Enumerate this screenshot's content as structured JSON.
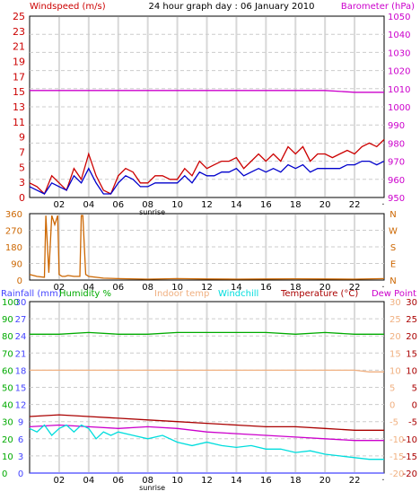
{
  "colors": {
    "wind": "#cc0000",
    "windavg": "#0000cc",
    "baro": "#cc00cc",
    "winddir": "#cc6600",
    "rain": "#4444ff",
    "humidity": "#00aa00",
    "indoor": "#f0b080",
    "windchill": "#00dddd",
    "temp": "#aa0000",
    "dew": "#cc00cc",
    "grid": "#dddddd",
    "frame": "#000000"
  },
  "header": {
    "title": "24 hour graph day : 06 January 2010",
    "left_label": "Windspeed (m/s)",
    "right_label": "Barometer (hPa)"
  },
  "legend2": {
    "rain": "Rainfall (mm)",
    "humidity": "Humidity %",
    "indoor": "Indoor temp",
    "windchill": "Windchill",
    "temp": "Temperature (°C)",
    "dew": "Dew Point"
  },
  "sunrise_label": "sunrise",
  "x_ticks": [
    "02",
    "04",
    "06",
    "08",
    "10",
    "12",
    "14",
    "16",
    "18",
    "20",
    "22"
  ],
  "chart_data": [
    {
      "type": "line",
      "name": "wind-baro",
      "xlim": [
        0,
        24
      ],
      "ylim": [
        0,
        25
      ],
      "y2lim": [
        950,
        1050
      ],
      "left_ticks": [
        "25",
        "23",
        "21",
        "19",
        "17",
        "15",
        "13",
        "11",
        "9",
        "7",
        "5",
        "3",
        "0"
      ],
      "right_ticks": [
        "1050",
        "1040",
        "1030",
        "1020",
        "1010",
        "1000",
        "990",
        "980",
        "970",
        "960",
        "950"
      ],
      "series": [
        {
          "key": "baro",
          "axis": "y2",
          "x": [
            0,
            2,
            4,
            6,
            8,
            10,
            12,
            14,
            16,
            18,
            20,
            22,
            24
          ],
          "y": [
            1009,
            1009,
            1009,
            1009,
            1009,
            1009,
            1009,
            1009,
            1009,
            1009,
            1009,
            1008,
            1008
          ]
        },
        {
          "key": "wind",
          "axis": "y",
          "x": [
            0,
            0.5,
            1,
            1.5,
            2,
            2.5,
            3,
            3.5,
            4,
            4.5,
            5,
            5.5,
            6,
            6.5,
            7,
            7.5,
            8,
            8.5,
            9,
            9.5,
            10,
            10.5,
            11,
            11.5,
            12,
            12.5,
            13,
            13.5,
            14,
            14.5,
            15,
            15.5,
            16,
            16.5,
            17,
            17.5,
            18,
            18.5,
            19,
            19.5,
            20,
            20.5,
            21,
            21.5,
            22,
            22.5,
            23,
            23.5,
            24
          ],
          "y": [
            2,
            1.5,
            0.5,
            3,
            2,
            1,
            4,
            2.5,
            6,
            3,
            1,
            0.5,
            3,
            4,
            3.5,
            2,
            2,
            3,
            3,
            2.5,
            2.5,
            4,
            3,
            5,
            4,
            4.5,
            5,
            5,
            5.5,
            4,
            5,
            6,
            5,
            6,
            5,
            7,
            6,
            7,
            5,
            6,
            6,
            5.5,
            6,
            6.5,
            6,
            7,
            7.5,
            7,
            8
          ]
        },
        {
          "key": "windavg",
          "axis": "y",
          "x": [
            0,
            0.5,
            1,
            1.5,
            2,
            2.5,
            3,
            3.5,
            4,
            4.5,
            5,
            5.5,
            6,
            6.5,
            7,
            7.5,
            8,
            8.5,
            9,
            9.5,
            10,
            10.5,
            11,
            11.5,
            12,
            12.5,
            13,
            13.5,
            14,
            14.5,
            15,
            15.5,
            16,
            16.5,
            17,
            17.5,
            18,
            18.5,
            19,
            19.5,
            20,
            20.5,
            21,
            21.5,
            22,
            22.5,
            23,
            23.5,
            24
          ],
          "y": [
            1.5,
            1,
            0.5,
            2,
            1.5,
            1,
            3,
            2,
            4,
            2,
            0.5,
            0.5,
            2,
            3,
            2.5,
            1.5,
            1.5,
            2,
            2,
            2,
            2,
            3,
            2,
            3.5,
            3,
            3,
            3.5,
            3.5,
            4,
            3,
            3.5,
            4,
            3.5,
            4,
            3.5,
            4.5,
            4,
            4.5,
            3.5,
            4,
            4,
            4,
            4,
            4.5,
            4.5,
            5,
            5,
            4.5,
            5
          ]
        }
      ]
    },
    {
      "type": "line",
      "name": "wind-direction",
      "xlim": [
        0,
        24
      ],
      "ylim": [
        0,
        360
      ],
      "left_ticks": [
        "360",
        "270",
        "180",
        "90",
        "0"
      ],
      "right_ticks": [
        "N",
        "W",
        "S",
        "E",
        "N"
      ],
      "series": [
        {
          "key": "winddir",
          "axis": "y",
          "x": [
            0,
            0.5,
            1,
            1.1,
            1.3,
            1.5,
            1.7,
            1.9,
            2,
            2.2,
            2.4,
            2.6,
            3,
            3.4,
            3.5,
            3.6,
            3.8,
            4,
            4.5,
            5,
            6,
            8,
            10,
            12,
            14,
            16,
            18,
            20,
            22,
            24
          ],
          "y": [
            30,
            20,
            15,
            350,
            40,
            350,
            300,
            350,
            30,
            20,
            20,
            25,
            20,
            20,
            350,
            350,
            30,
            20,
            15,
            10,
            8,
            5,
            8,
            6,
            5,
            6,
            7,
            6,
            5,
            8
          ]
        }
      ]
    },
    {
      "type": "line",
      "name": "temperature-humidity",
      "xlim": [
        0,
        24
      ],
      "ylim": [
        -20,
        30
      ],
      "y_left_ticks": [
        "100",
        "90",
        "80",
        "70",
        "60",
        "50",
        "40",
        "30",
        "20",
        "10",
        "0"
      ],
      "y_mid_ticks": [
        "30",
        "27",
        "24",
        "21",
        "18",
        "15",
        "12",
        "9",
        "6",
        "3",
        "0"
      ],
      "y_right_ticks": [
        "30",
        "25",
        "20",
        "15",
        "10",
        "5",
        "0",
        "-5",
        "-10",
        "-15",
        "-20"
      ],
      "series": [
        {
          "key": "humidity",
          "axis": "y_left",
          "x": [
            0,
            2,
            4,
            6,
            8,
            10,
            12,
            14,
            16,
            18,
            20,
            22,
            24
          ],
          "y": [
            81,
            81,
            82,
            81,
            81,
            82,
            82,
            82,
            82,
            81,
            82,
            81,
            81
          ]
        },
        {
          "key": "indoor",
          "axis": "y_right",
          "x": [
            0,
            2,
            4,
            6,
            8,
            10,
            12,
            14,
            16,
            18,
            20,
            22,
            23,
            24
          ],
          "y": [
            10,
            10,
            10,
            10,
            10,
            10,
            10,
            10,
            10,
            10,
            10,
            10,
            9.5,
            9.5
          ]
        },
        {
          "key": "temp",
          "axis": "y_right",
          "x": [
            0,
            2,
            4,
            6,
            8,
            10,
            12,
            14,
            16,
            18,
            20,
            22,
            24
          ],
          "y": [
            -3.5,
            -3,
            -3.5,
            -4,
            -4.5,
            -5,
            -5.5,
            -6,
            -6.5,
            -6.5,
            -7,
            -7.5,
            -7.5
          ]
        },
        {
          "key": "dew",
          "axis": "y_right",
          "x": [
            0,
            2,
            4,
            6,
            8,
            10,
            12,
            14,
            16,
            18,
            20,
            22,
            24
          ],
          "y": [
            -6.5,
            -6,
            -6.5,
            -7,
            -6.5,
            -7,
            -8,
            -8.5,
            -9,
            -9.5,
            -10,
            -10.5,
            -10.5
          ]
        },
        {
          "key": "windchill",
          "axis": "y_right",
          "x": [
            0,
            0.5,
            1,
            1.5,
            2,
            2.5,
            3,
            3.5,
            4,
            4.5,
            5,
            5.5,
            6,
            7,
            8,
            9,
            10,
            11,
            12,
            13,
            14,
            15,
            16,
            17,
            18,
            19,
            20,
            21,
            22,
            23,
            24
          ],
          "y": [
            -7,
            -8,
            -6,
            -9,
            -7,
            -6,
            -8,
            -6,
            -7,
            -10,
            -8,
            -9,
            -8,
            -9,
            -10,
            -9,
            -11,
            -12,
            -11,
            -12,
            -12.5,
            -12,
            -13,
            -13,
            -14,
            -13.5,
            -14.5,
            -15,
            -15.5,
            -16,
            -16
          ]
        },
        {
          "key": "rain",
          "axis": "y_mid",
          "x": [
            0,
            24
          ],
          "y": [
            0,
            0
          ]
        }
      ]
    }
  ]
}
